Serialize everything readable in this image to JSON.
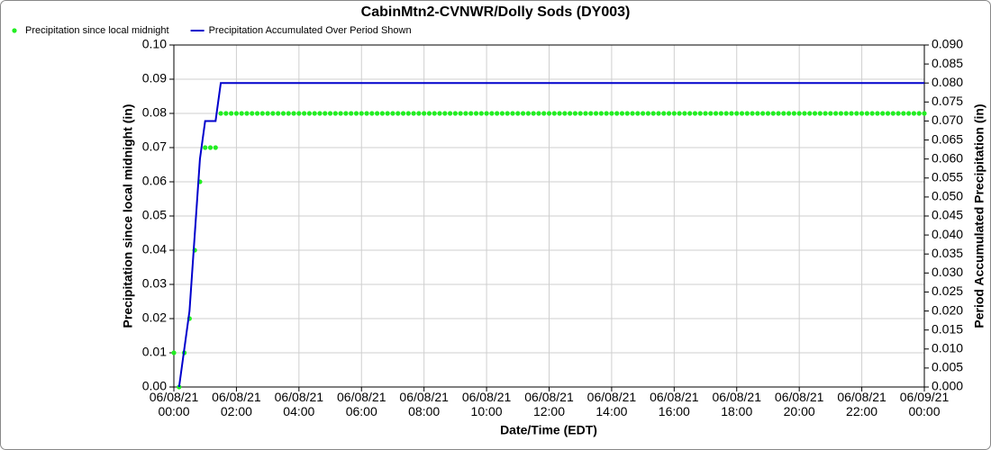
{
  "chart_data": {
    "type": "line",
    "title": "CabinMtn2-CVNWR/Dolly Sods (DY003)",
    "x_label": "Date/Time (EDT)",
    "y_label": "Precipitation since local midnight (in)",
    "y2_label": "Period Accumulated Precipitation (in)",
    "grid": true,
    "legend": "top-left",
    "xlim": [
      "06/08/21 00:00",
      "06/09/21 00:00"
    ],
    "xticks": [
      "06/08/21 00:00",
      "06/08/21 02:00",
      "06/08/21 04:00",
      "06/08/21 06:00",
      "06/08/21 08:00",
      "06/08/21 10:00",
      "06/08/21 12:00",
      "06/08/21 14:00",
      "06/08/21 16:00",
      "06/08/21 18:00",
      "06/08/21 20:00",
      "06/08/21 22:00",
      "06/09/21 00:00"
    ],
    "ylim": [
      0,
      0.1
    ],
    "yticks": [
      {
        "value": 0,
        "label": "0.00"
      },
      {
        "value": 0.01,
        "label": "0.01"
      },
      {
        "value": 0.02,
        "label": "0.02"
      },
      {
        "value": 0.03,
        "label": "0.03"
      },
      {
        "value": 0.04,
        "label": "0.04"
      },
      {
        "value": 0.05,
        "label": "0.05"
      },
      {
        "value": 0.06,
        "label": "0.06"
      },
      {
        "value": 0.07,
        "label": "0.07"
      },
      {
        "value": 0.08,
        "label": "0.08"
      },
      {
        "value": 0.09,
        "label": "0.09"
      },
      {
        "value": 0.1,
        "label": "0.10"
      }
    ],
    "y2lim": [
      0,
      0.09
    ],
    "y2ticks": [
      {
        "value": 0,
        "label": "0.000"
      },
      {
        "value": 0.005,
        "label": "0.005"
      },
      {
        "value": 0.01,
        "label": "0.010"
      },
      {
        "value": 0.015,
        "label": "0.015"
      },
      {
        "value": 0.02,
        "label": "0.020"
      },
      {
        "value": 0.025,
        "label": "0.025"
      },
      {
        "value": 0.03,
        "label": "0.030"
      },
      {
        "value": 0.035,
        "label": "0.035"
      },
      {
        "value": 0.04,
        "label": "0.040"
      },
      {
        "value": 0.045,
        "label": "0.045"
      },
      {
        "value": 0.05,
        "label": "0.050"
      },
      {
        "value": 0.055,
        "label": "0.055"
      },
      {
        "value": 0.06,
        "label": "0.060"
      },
      {
        "value": 0.065,
        "label": "0.065"
      },
      {
        "value": 0.07,
        "label": "0.070"
      },
      {
        "value": 0.075,
        "label": "0.075"
      },
      {
        "value": 0.08,
        "label": "0.080"
      },
      {
        "value": 0.085,
        "label": "0.085"
      },
      {
        "value": 0.09,
        "label": "0.090"
      }
    ],
    "x": [
      "06/08/21 00:00",
      "06/08/21 00:10",
      "06/08/21 00:20",
      "06/08/21 00:30",
      "06/08/21 00:40",
      "06/08/21 00:50",
      "06/08/21 01:00",
      "06/08/21 01:10",
      "06/08/21 01:20",
      "06/08/21 01:30",
      "06/08/21 01:40",
      "06/08/21 01:50",
      "06/08/21 02:00",
      "06/08/21 02:10",
      "06/08/21 02:20",
      "06/08/21 02:30",
      "06/08/21 02:40",
      "06/08/21 02:50",
      "06/08/21 03:00",
      "06/08/21 03:10",
      "06/08/21 03:20",
      "06/08/21 03:30",
      "06/08/21 03:40",
      "06/08/21 03:50",
      "06/08/21 04:00",
      "06/08/21 04:10",
      "06/08/21 04:20",
      "06/08/21 04:30",
      "06/08/21 04:40",
      "06/08/21 04:50",
      "06/08/21 05:00",
      "06/08/21 05:10",
      "06/08/21 05:20",
      "06/08/21 05:30",
      "06/08/21 05:40",
      "06/08/21 05:50",
      "06/08/21 06:00",
      "06/08/21 06:10",
      "06/08/21 06:20",
      "06/08/21 06:30",
      "06/08/21 06:40",
      "06/08/21 06:50",
      "06/08/21 07:00",
      "06/08/21 07:10",
      "06/08/21 07:20",
      "06/08/21 07:30",
      "06/08/21 07:40",
      "06/08/21 07:50",
      "06/08/21 08:00",
      "06/08/21 08:10",
      "06/08/21 08:20",
      "06/08/21 08:30",
      "06/08/21 08:40",
      "06/08/21 08:50",
      "06/08/21 09:00",
      "06/08/21 09:10",
      "06/08/21 09:20",
      "06/08/21 09:30",
      "06/08/21 09:40",
      "06/08/21 09:50",
      "06/08/21 10:00",
      "06/08/21 10:10",
      "06/08/21 10:20",
      "06/08/21 10:30",
      "06/08/21 10:40",
      "06/08/21 10:50",
      "06/08/21 11:00",
      "06/08/21 11:10",
      "06/08/21 11:20",
      "06/08/21 11:30",
      "06/08/21 11:40",
      "06/08/21 11:50",
      "06/08/21 12:00",
      "06/08/21 12:10",
      "06/08/21 12:20",
      "06/08/21 12:30",
      "06/08/21 12:40",
      "06/08/21 12:50",
      "06/08/21 13:00",
      "06/08/21 13:10",
      "06/08/21 13:20",
      "06/08/21 13:30",
      "06/08/21 13:40",
      "06/08/21 13:50",
      "06/08/21 14:00",
      "06/08/21 14:10",
      "06/08/21 14:20",
      "06/08/21 14:30",
      "06/08/21 14:40",
      "06/08/21 14:50",
      "06/08/21 15:00",
      "06/08/21 15:10",
      "06/08/21 15:20",
      "06/08/21 15:30",
      "06/08/21 15:40",
      "06/08/21 15:50",
      "06/08/21 16:00",
      "06/08/21 16:10",
      "06/08/21 16:20",
      "06/08/21 16:30",
      "06/08/21 16:40",
      "06/08/21 16:50",
      "06/08/21 17:00",
      "06/08/21 17:10",
      "06/08/21 17:20",
      "06/08/21 17:30",
      "06/08/21 17:40",
      "06/08/21 17:50",
      "06/08/21 18:00",
      "06/08/21 18:10",
      "06/08/21 18:20",
      "06/08/21 18:30",
      "06/08/21 18:40",
      "06/08/21 18:50",
      "06/08/21 19:00",
      "06/08/21 19:10",
      "06/08/21 19:20",
      "06/08/21 19:30",
      "06/08/21 19:40",
      "06/08/21 19:50",
      "06/08/21 20:00",
      "06/08/21 20:10",
      "06/08/21 20:20",
      "06/08/21 20:30",
      "06/08/21 20:40",
      "06/08/21 20:50",
      "06/08/21 21:00",
      "06/08/21 21:10",
      "06/08/21 21:20",
      "06/08/21 21:30",
      "06/08/21 21:40",
      "06/08/21 21:50",
      "06/08/21 22:00",
      "06/08/21 22:10",
      "06/08/21 22:20",
      "06/08/21 22:30",
      "06/08/21 22:40",
      "06/08/21 22:50",
      "06/08/21 23:00",
      "06/08/21 23:10",
      "06/08/21 23:20",
      "06/08/21 23:30",
      "06/08/21 23:40",
      "06/08/21 23:50",
      "06/09/21 00:00"
    ],
    "series": [
      {
        "name": "Precipitation since local midnight",
        "color": "#22ee22",
        "marker": "dot",
        "values": [
          0.01,
          0,
          0.01,
          0.02,
          0.04,
          0.06,
          0.07,
          0.07,
          0.07,
          0.08,
          0.08,
          0.08,
          0.08,
          0.08,
          0.08,
          0.08,
          0.08,
          0.08,
          0.08,
          0.08,
          0.08,
          0.08,
          0.08,
          0.08,
          0.08,
          0.08,
          0.08,
          0.08,
          0.08,
          0.08,
          0.08,
          0.08,
          0.08,
          0.08,
          0.08,
          0.08,
          0.08,
          0.08,
          0.08,
          0.08,
          0.08,
          0.08,
          0.08,
          0.08,
          0.08,
          0.08,
          0.08,
          0.08,
          0.08,
          0.08,
          0.08,
          0.08,
          0.08,
          0.08,
          0.08,
          0.08,
          0.08,
          0.08,
          0.08,
          0.08,
          0.08,
          0.08,
          0.08,
          0.08,
          0.08,
          0.08,
          0.08,
          0.08,
          0.08,
          0.08,
          0.08,
          0.08,
          0.08,
          0.08,
          0.08,
          0.08,
          0.08,
          0.08,
          0.08,
          0.08,
          0.08,
          0.08,
          0.08,
          0.08,
          0.08,
          0.08,
          0.08,
          0.08,
          0.08,
          0.08,
          0.08,
          0.08,
          0.08,
          0.08,
          0.08,
          0.08,
          0.08,
          0.08,
          0.08,
          0.08,
          0.08,
          0.08,
          0.08,
          0.08,
          0.08,
          0.08,
          0.08,
          0.08,
          0.08,
          0.08,
          0.08,
          0.08,
          0.08,
          0.08,
          0.08,
          0.08,
          0.08,
          0.08,
          0.08,
          0.08,
          0.08,
          0.08,
          0.08,
          0.08,
          0.08,
          0.08,
          0.08,
          0.08,
          0.08,
          0.08,
          0.08,
          0.08,
          0.08,
          0.08,
          0.08,
          0.08,
          0.08,
          0.08,
          0.08,
          0.08,
          0.08,
          0.08,
          0.08,
          0.08,
          0.08
        ]
      },
      {
        "name": "Precipitation Accumulated Over Period Shown",
        "color": "#0000cc",
        "marker": "line",
        "axis": "y2",
        "values": [
          null,
          0,
          0.01,
          0.02,
          0.04,
          0.06,
          0.07,
          0.07,
          0.07,
          0.08,
          0.08,
          0.08,
          0.08,
          0.08,
          0.08,
          0.08,
          0.08,
          0.08,
          0.08,
          0.08,
          0.08,
          0.08,
          0.08,
          0.08,
          0.08,
          0.08,
          0.08,
          0.08,
          0.08,
          0.08,
          0.08,
          0.08,
          0.08,
          0.08,
          0.08,
          0.08,
          0.08,
          0.08,
          0.08,
          0.08,
          0.08,
          0.08,
          0.08,
          0.08,
          0.08,
          0.08,
          0.08,
          0.08,
          0.08,
          0.08,
          0.08,
          0.08,
          0.08,
          0.08,
          0.08,
          0.08,
          0.08,
          0.08,
          0.08,
          0.08,
          0.08,
          0.08,
          0.08,
          0.08,
          0.08,
          0.08,
          0.08,
          0.08,
          0.08,
          0.08,
          0.08,
          0.08,
          0.08,
          0.08,
          0.08,
          0.08,
          0.08,
          0.08,
          0.08,
          0.08,
          0.08,
          0.08,
          0.08,
          0.08,
          0.08,
          0.08,
          0.08,
          0.08,
          0.08,
          0.08,
          0.08,
          0.08,
          0.08,
          0.08,
          0.08,
          0.08,
          0.08,
          0.08,
          0.08,
          0.08,
          0.08,
          0.08,
          0.08,
          0.08,
          0.08,
          0.08,
          0.08,
          0.08,
          0.08,
          0.08,
          0.08,
          0.08,
          0.08,
          0.08,
          0.08,
          0.08,
          0.08,
          0.08,
          0.08,
          0.08,
          0.08,
          0.08,
          0.08,
          0.08,
          0.08,
          0.08,
          0.08,
          0.08,
          0.08,
          0.08,
          0.08,
          0.08,
          0.08,
          0.08,
          0.08,
          0.08,
          0.08,
          0.08,
          0.08,
          0.08,
          0.08,
          0.08,
          0.08,
          0.08,
          0.08
        ]
      }
    ]
  }
}
